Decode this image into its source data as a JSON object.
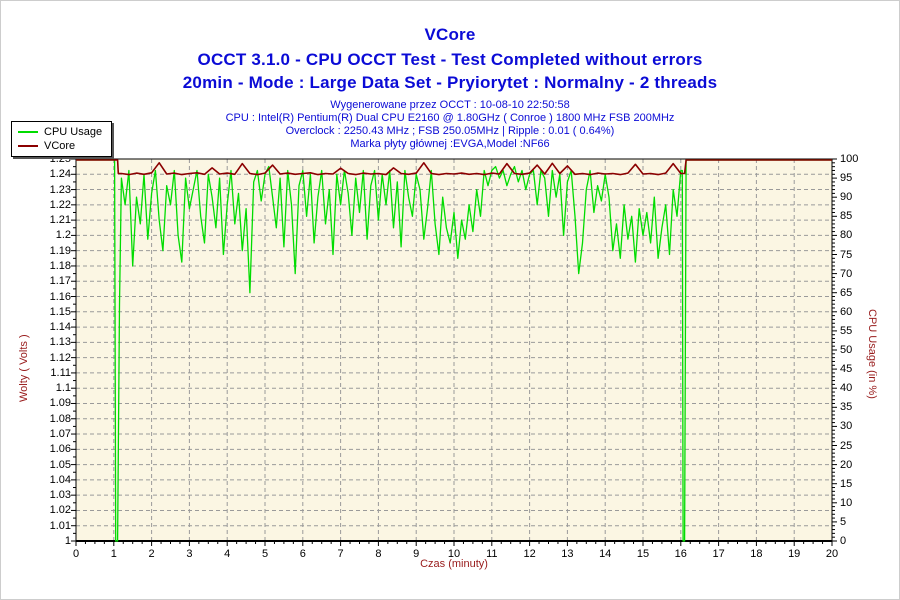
{
  "titles": {
    "main": "VCore",
    "sub1": "OCCT 3.1.0 - CPU OCCT Test - Test Completed without errors",
    "sub2": "20min - Mode : Large Data Set - Pryiorytet : Normalny - 2 threads"
  },
  "info_lines": [
    "Wygenerowane przez OCCT : 10-08-10 22:50:58",
    "CPU : Intel(R) Pentium(R) Dual CPU E2160 @ 1.80GHz ( Conroe ) 1800 MHz FSB 200MHz",
    "Overclock : 2250.43 MHz ; FSB 250.05MHz | Ripple : 0.01 ( 0.64%)",
    "Marka płyty głównej :EVGA,Model :NF66"
  ],
  "legend": {
    "items": [
      {
        "label": "CPU Usage",
        "color": "#00dc00"
      },
      {
        "label": "VCore",
        "color": "#8b0000"
      }
    ]
  },
  "colors": {
    "title_blue": "#0b0bd6",
    "info_blue": "#0b0bd6",
    "plot_bg": "#fbf6e3",
    "grid": "#9a9a9a",
    "cpu_green": "#00dc00",
    "vcore_maroon": "#8b0000",
    "axis_title_red": "#981b1b",
    "tick_label": "#000000"
  },
  "chart_data": {
    "type": "line",
    "title": "VCore",
    "grid": true,
    "legend_position": "top-left",
    "x_axis": {
      "label": "Czas (minuty)",
      "min": 0,
      "max": 20,
      "major_tick": 1,
      "minor_tick": 0.25,
      "tick_labels": [
        "0",
        "1",
        "2",
        "3",
        "4",
        "5",
        "6",
        "7",
        "8",
        "9",
        "10",
        "11",
        "12",
        "13",
        "14",
        "15",
        "16",
        "17",
        "18",
        "19",
        "20"
      ]
    },
    "y_left": {
      "label": "Wolty ( Volts )",
      "min": 1,
      "max": 1.25,
      "major_tick": 0.01,
      "minor_tick": 0.005,
      "tick_labels": [
        "1.25",
        "1.24",
        "1.23",
        "1.22",
        "1.21",
        "1.2",
        "1.19",
        "1.18",
        "1.17",
        "1.16",
        "1.15",
        "1.14",
        "1.13",
        "1.12",
        "1.11",
        "1.1",
        "1.09",
        "1.08",
        "1.07",
        "1.06",
        "1.05",
        "1.04",
        "1.03",
        "1.02",
        "1.01",
        "1"
      ]
    },
    "y_right": {
      "label": "CPU Usage (in %)",
      "min": 0,
      "max": 100,
      "major_tick": 5,
      "minor_tick": 1,
      "tick_labels": [
        "100",
        "95",
        "90",
        "85",
        "80",
        "75",
        "70",
        "65",
        "60",
        "55",
        "50",
        "45",
        "40",
        "35",
        "30",
        "25",
        "20",
        "15",
        "10",
        "5",
        "0"
      ]
    },
    "series": [
      {
        "name": "CPU Usage",
        "axis": "right",
        "color": "#00dc00",
        "width": 1.3,
        "segments": [
          {
            "points": [
              [
                0,
                100
              ],
              [
                1.02,
                100
              ],
              [
                1.05,
                0
              ],
              [
                1.1,
                0
              ],
              [
                1.15,
                62
              ]
            ]
          },
          {
            "x_start": 1.2,
            "x_step": 0.1,
            "values": [
              95,
              88,
              97,
              72,
              90,
              83,
              96,
              79,
              91,
              97,
              84,
              76,
              93,
              88,
              97,
              80,
              73,
              95,
              87,
              92,
              97,
              85,
              78,
              96,
              90,
              82,
              95,
              75,
              88,
              97,
              83,
              91,
              76,
              87,
              65,
              94,
              97,
              89,
              96,
              98,
              90,
              82,
              95,
              77,
              97,
              88,
              70,
              93,
              97,
              85,
              96,
              78,
              90,
              97,
              83,
              92,
              75,
              96,
              88,
              97,
              91,
              80,
              95,
              86,
              97,
              79,
              93,
              97,
              84,
              96,
              88,
              97,
              82,
              94,
              77,
              97,
              90,
              85,
              96,
              92,
              79,
              87,
              97,
              83,
              75,
              90,
              82,
              78,
              86,
              74,
              84,
              79,
              88,
              81,
              92,
              85,
              97,
              93,
              97,
              98,
              95,
              97,
              93,
              96,
              98,
              94,
              97,
              92,
              96,
              97,
              88,
              97,
              95,
              85,
              97,
              90,
              96,
              80,
              94,
              97,
              85,
              70,
              78,
              92,
              97,
              86,
              93,
              89,
              96,
              90,
              76,
              83,
              74,
              88,
              79,
              85,
              73,
              87,
              80,
              86,
              78,
              90,
              74,
              82,
              88,
              75,
              92,
              85,
              97
            ]
          },
          {
            "points": [
              [
                16.04,
                97
              ],
              [
                16.06,
                0
              ],
              [
                16.1,
                0
              ],
              [
                16.14,
                100
              ],
              [
                20,
                100
              ]
            ]
          }
        ]
      },
      {
        "name": "VCore",
        "axis": "left",
        "color": "#8b0000",
        "width": 1.6,
        "segments": [
          {
            "points": [
              [
                0,
                1.25
              ],
              [
                1.1,
                1.25
              ],
              [
                1.12,
                1.2405
              ]
            ]
          },
          {
            "x_start": 1.2,
            "x_step": 0.2,
            "values": [
              1.2405,
              1.2398,
              1.2408,
              1.24,
              1.241,
              1.2475,
              1.2402,
              1.2408,
              1.2398,
              1.2405,
              1.241,
              1.24,
              1.2442,
              1.2402,
              1.2408,
              1.24,
              1.247,
              1.2405,
              1.2398,
              1.2408,
              1.246,
              1.2402,
              1.2408,
              1.24,
              1.2405,
              1.241,
              1.2398,
              1.2405,
              1.2402,
              1.244,
              1.2405,
              1.2398,
              1.2408,
              1.2402,
              1.2405,
              1.2398,
              1.2442,
              1.2405,
              1.24,
              1.2408,
              1.2475,
              1.2405,
              1.2398,
              1.2405,
              1.2402,
              1.2408,
              1.24,
              1.2405,
              1.2398,
              1.2408,
              1.2402,
              1.247,
              1.2405,
              1.24,
              1.2408,
              1.246,
              1.2402,
              1.2472,
              1.2405,
              1.2455,
              1.24,
              1.2405,
              1.2398,
              1.2408,
              1.2402,
              1.2405,
              1.2398,
              1.2408,
              1.2465,
              1.2402,
              1.2405,
              1.2398,
              1.2408,
              1.247,
              1.2405
            ]
          },
          {
            "points": [
              [
                16.1,
                1.2405
              ],
              [
                16.14,
                1.25
              ],
              [
                20,
                1.25
              ]
            ]
          }
        ]
      }
    ]
  }
}
